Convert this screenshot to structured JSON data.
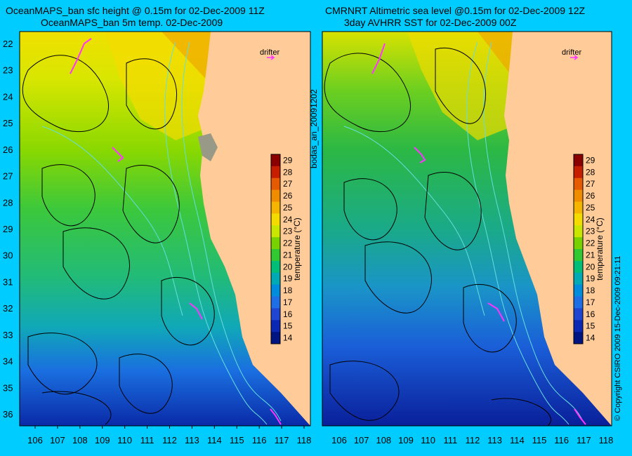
{
  "left_panel": {
    "title_line1": "OceanMAPS_ban sfc height @ 0.15m for 02-Dec-2009 11Z",
    "title_line2": "OceanMAPS_ban 5m temp. 02-Dec-2009",
    "drifter_label": "drifter"
  },
  "right_panel": {
    "title_line1": "CMRNRT Altimetric sea level  @0.15m  for 02-Dec-2009 12Z",
    "title_line2": "3day AVHRR SST for 02-Dec-2009 00Z",
    "drifter_label": "drifter"
  },
  "side_labels": {
    "left_vertical": "bodas_an_20091202",
    "right_vertical": "© Copyright CSIRO 2009  15-Dec-2009 09:21:11"
  },
  "axes": {
    "longitude_ticks": [
      "106",
      "107",
      "108",
      "109",
      "110",
      "111",
      "112",
      "113",
      "114",
      "115",
      "116",
      "117",
      "118"
    ],
    "latitude_ticks": [
      "22",
      "23",
      "24",
      "25",
      "26",
      "27",
      "28",
      "29",
      "30",
      "31",
      "32",
      "33",
      "34",
      "35",
      "36"
    ]
  },
  "colorbar": {
    "label": "temperature (°C)",
    "ticks": [
      "29",
      "28",
      "27",
      "26",
      "25",
      "24",
      "23",
      "22",
      "21",
      "20",
      "19",
      "18",
      "17",
      "16",
      "15",
      "14"
    ],
    "colors": [
      "#8b0000",
      "#c81e00",
      "#e65a00",
      "#f08c00",
      "#f5b400",
      "#f5dc00",
      "#c8e600",
      "#78d200",
      "#32c832",
      "#00be78",
      "#00aab4",
      "#008cdc",
      "#1e6ee6",
      "#1e46d2",
      "#0a28b4",
      "#001482"
    ]
  },
  "land_color": "#ffcc99",
  "contour_color": "#000000",
  "bathymetry_color": "#66dddd",
  "drifter_color": "#ff33ff"
}
